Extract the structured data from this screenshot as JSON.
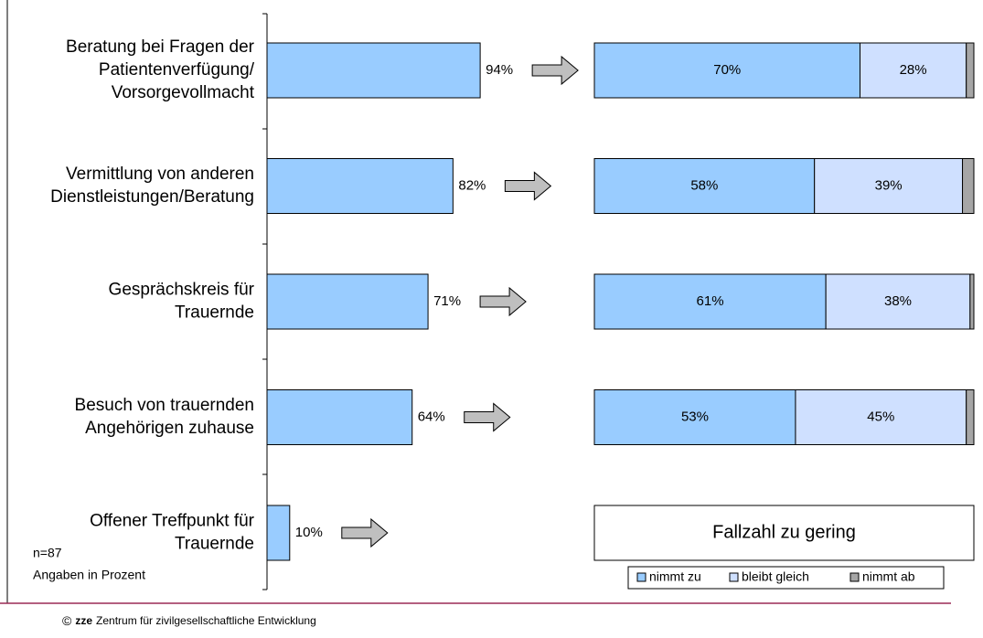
{
  "chart_data": [
    {
      "type": "bar",
      "categories": [
        [
          "Beratung bei Fragen der",
          "Patientenverfügung/",
          "Vorsorgevollmacht"
        ],
        [
          "Vermittlung von anderen",
          "Dienstleistungen/Beratung"
        ],
        [
          "Gesprächskreis für",
          "Trauernde"
        ],
        [
          "Besuch von trauernden",
          "Angehörigen zuhause"
        ],
        [
          "Offener Treffpunkt für",
          "Trauernde"
        ]
      ],
      "values": [
        94,
        82,
        71,
        64,
        10
      ],
      "value_labels": [
        "94%",
        "82%",
        "71%",
        "64%",
        "10%"
      ],
      "color": "#99ccff",
      "xlim": [
        0,
        100
      ]
    },
    {
      "type": "stacked_bar",
      "series": [
        {
          "name": "nimmt zu",
          "color": "#99ccff",
          "values": [
            70,
            58,
            61,
            53,
            null
          ],
          "value_labels": [
            "70%",
            "58%",
            "61%",
            "53%",
            null
          ]
        },
        {
          "name": "bleibt gleich",
          "color": "#cfe0ff",
          "values": [
            28,
            39,
            38,
            45,
            null
          ],
          "value_labels": [
            "28%",
            "39%",
            "38%",
            "45%",
            null
          ]
        },
        {
          "name": "nimmt ab",
          "color": "#a6a6a6",
          "values": [
            2,
            3,
            1,
            2,
            null
          ]
        }
      ],
      "xlim": [
        0,
        100
      ],
      "annotation": "Fallzahl zu gering"
    }
  ],
  "notes": [
    "n=87",
    "Angaben in Prozent"
  ],
  "footer": {
    "symbol": "©",
    "brand": "zze",
    "text": "Zentrum für zivilgesellschaftliche Entwicklung"
  }
}
